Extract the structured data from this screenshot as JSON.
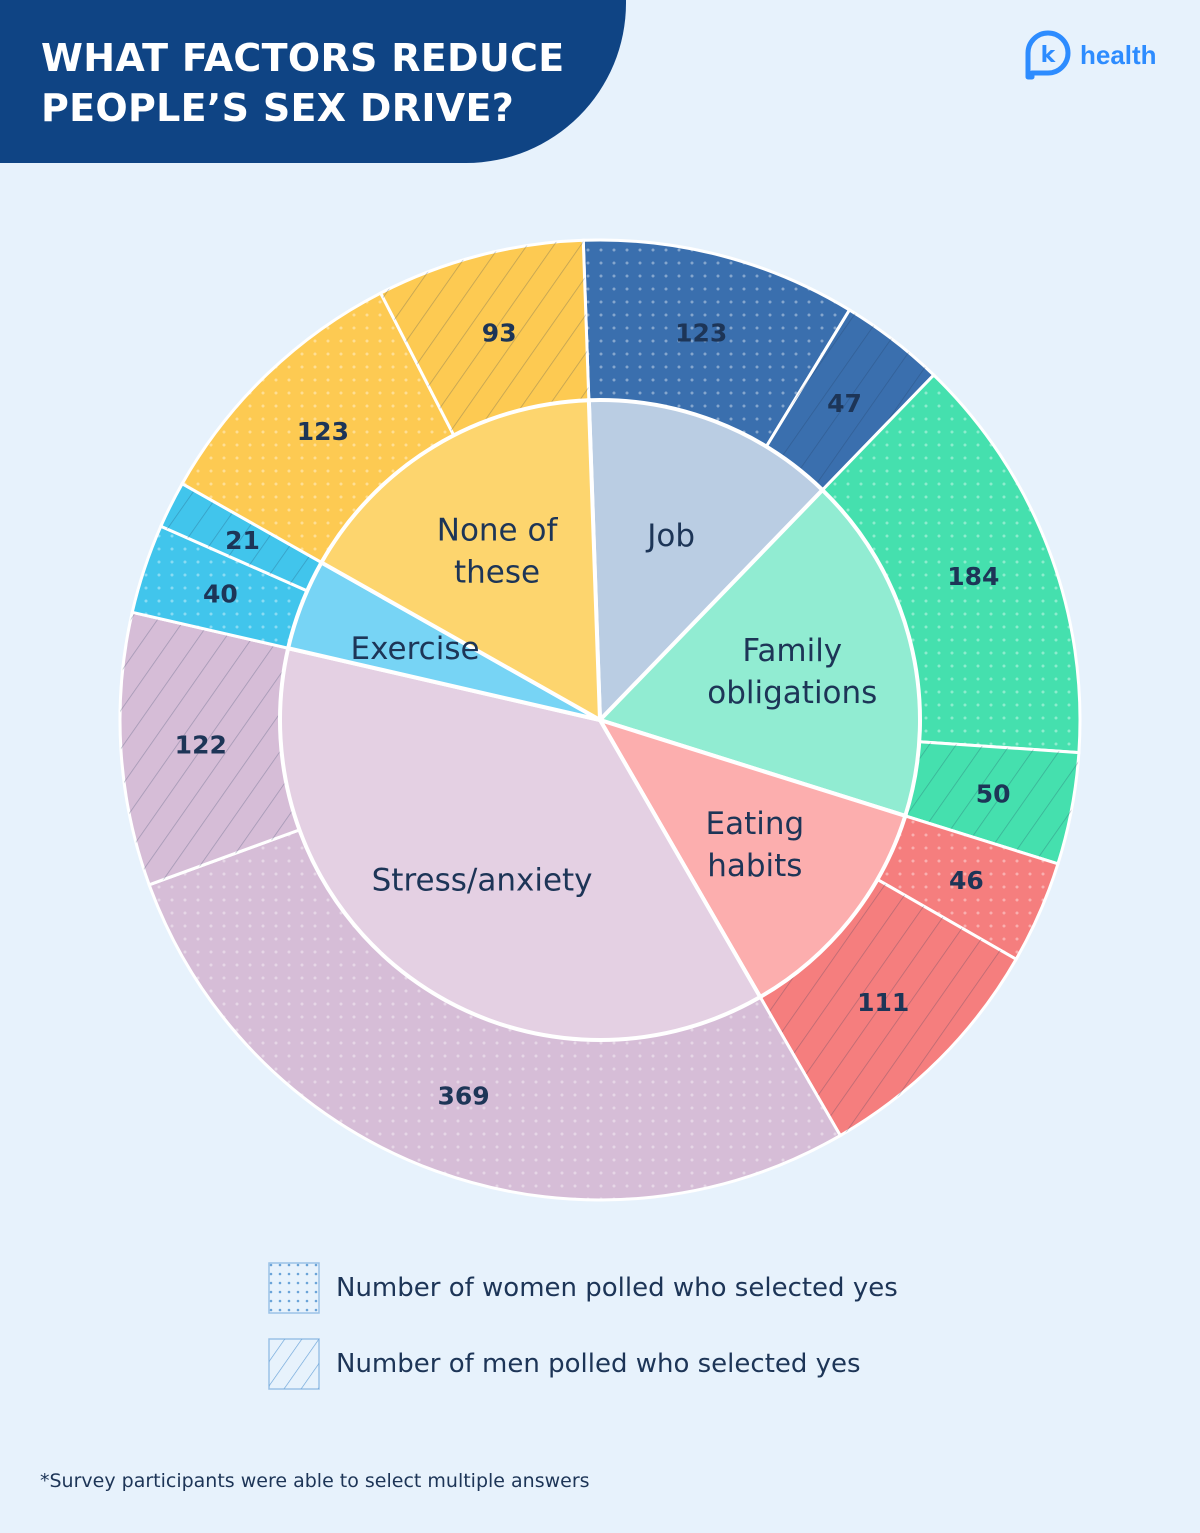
{
  "header": {
    "title_lines": [
      "WHAT FACTORS REDUCE",
      "PEOPLE’S SEX DRIVE?"
    ],
    "logo_letter": "k",
    "logo_text": "health"
  },
  "colors": {
    "background": "#e7f2fc",
    "banner": "#0f4484",
    "brand": "#2d8cff",
    "label_text": "#1d3557"
  },
  "chart_data": {
    "type": "pie",
    "categories": [
      "Job",
      "Family obligations",
      "Eating habits",
      "Stress/anxiety",
      "Exercise",
      "None of these"
    ],
    "category_labels": [
      [
        "Job"
      ],
      [
        "Family",
        "obligations"
      ],
      [
        "Eating",
        "habits"
      ],
      [
        "Stress/anxiety"
      ],
      [
        "Exercise"
      ],
      [
        "None of",
        "these"
      ]
    ],
    "inner_colors": [
      "#bacde3",
      "#91ecd2",
      "#fcaeae",
      "#e4d0e3",
      "#77d4f5",
      "#fdd56e"
    ],
    "outer_colors": [
      "#3a6fae",
      "#45e0ae",
      "#f57e7e",
      "#d6bdd7",
      "#41c5ec",
      "#fdca52"
    ],
    "outer_segments": [
      {
        "category": "Job",
        "group": "women",
        "value": 123
      },
      {
        "category": "Job",
        "group": "men",
        "value": 47
      },
      {
        "category": "Family obligations",
        "group": "women",
        "value": 184
      },
      {
        "category": "Family obligations",
        "group": "men",
        "value": 50
      },
      {
        "category": "Eating habits",
        "group": "women",
        "value": 46
      },
      {
        "category": "Eating habits",
        "group": "men",
        "value": 111
      },
      {
        "category": "Stress/anxiety",
        "group": "women",
        "value": 369
      },
      {
        "category": "Stress/anxiety",
        "group": "men",
        "value": 122
      },
      {
        "category": "Exercise",
        "group": "women",
        "value": 40
      },
      {
        "category": "Exercise",
        "group": "men",
        "value": 21
      },
      {
        "category": "None of these",
        "group": "women",
        "value": 123
      },
      {
        "category": "None of these",
        "group": "men",
        "value": 93
      }
    ],
    "legend": [
      {
        "group": "women",
        "pattern": "dots",
        "label": "Number of women polled who selected yes"
      },
      {
        "group": "men",
        "pattern": "diagonal-lines",
        "label": "Number of men polled who selected yes"
      }
    ]
  },
  "footnote": "*Survey participants were able to select multiple answers"
}
